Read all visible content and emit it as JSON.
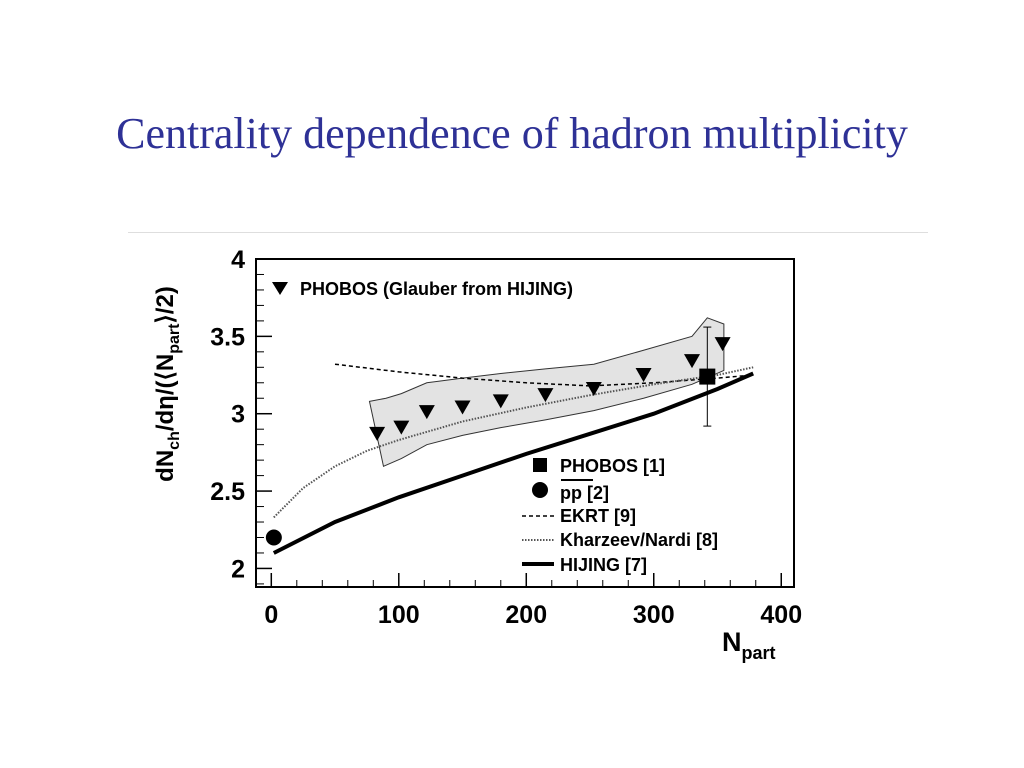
{
  "slide": {
    "title": "Centrality dependence of hadron multiplicity"
  },
  "chart_data": {
    "type": "scatter",
    "xlim": [
      -12,
      410
    ],
    "ylim": [
      1.88,
      4.0
    ],
    "x_ticks": [
      "0",
      "100",
      "200",
      "300",
      "400"
    ],
    "x_tick_values": [
      0,
      100,
      200,
      300,
      400
    ],
    "y_ticks": [
      "2",
      "2.5",
      "3",
      "3.5",
      "4"
    ],
    "y_tick_values": [
      2,
      2.5,
      3,
      3.5,
      4
    ],
    "xlabel": {
      "main": "N",
      "sub": "part"
    },
    "ylabel": {
      "p1": "dN",
      "sub1": "ch",
      "p2": "/dη/(⟨N",
      "sub2": "part",
      "p3": "⟩/2)"
    },
    "legend_top": "PHOBOS (Glauber from HIJING)",
    "legend": [
      {
        "label": "PHOBOS [1]",
        "style": "square"
      },
      {
        "label": "pp [2]",
        "style": "circle",
        "overline": "pp"
      },
      {
        "label": "EKRT [9]",
        "style": "dashed"
      },
      {
        "label": "Kharzeev/Nardi [8]",
        "style": "dotted"
      },
      {
        "label": "HIJING [7]",
        "style": "solid"
      }
    ],
    "series": [
      {
        "name": "PHOBOS (Glauber from HIJING)",
        "marker": "triangle-down",
        "x": [
          83,
          102,
          122,
          150,
          180,
          215,
          253,
          292,
          330,
          354
        ],
        "y": [
          2.87,
          2.91,
          3.01,
          3.04,
          3.08,
          3.12,
          3.16,
          3.25,
          3.34,
          3.45
        ]
      },
      {
        "name": "PHOBOS [1]",
        "marker": "square",
        "x": [
          342
        ],
        "y": [
          3.24
        ],
        "yerr": [
          0.32
        ]
      },
      {
        "name": "pp [2]",
        "marker": "circle",
        "x": [
          2
        ],
        "y": [
          2.2
        ]
      },
      {
        "name": "EKRT [9]",
        "line": "dashed",
        "x": [
          50,
          100,
          150,
          200,
          250,
          300,
          350,
          378
        ],
        "y": [
          3.32,
          3.27,
          3.23,
          3.2,
          3.18,
          3.2,
          3.23,
          3.25
        ]
      },
      {
        "name": "Kharzeev/Nardi [8]",
        "line": "dotted",
        "x": [
          2,
          25,
          50,
          75,
          100,
          150,
          200,
          250,
          300,
          350,
          378
        ],
        "y": [
          2.33,
          2.52,
          2.66,
          2.76,
          2.83,
          2.95,
          3.04,
          3.12,
          3.19,
          3.25,
          3.3
        ]
      },
      {
        "name": "HIJING [7]",
        "line": "solid",
        "x": [
          2,
          50,
          100,
          150,
          200,
          250,
          300,
          350,
          378
        ],
        "y": [
          2.1,
          2.3,
          2.46,
          2.6,
          2.74,
          2.87,
          3.0,
          3.16,
          3.26
        ]
      }
    ],
    "band": {
      "upper": {
        "x": [
          77,
          90,
          102,
          122,
          150,
          180,
          215,
          253,
          292,
          330,
          342,
          355
        ],
        "y": [
          3.08,
          3.1,
          3.13,
          3.2,
          3.23,
          3.26,
          3.29,
          3.32,
          3.41,
          3.5,
          3.62,
          3.58
        ]
      },
      "lower": {
        "x": [
          88,
          102,
          122,
          150,
          180,
          215,
          253,
          292,
          330,
          355
        ],
        "y": [
          2.66,
          2.71,
          2.8,
          2.86,
          2.91,
          2.96,
          3.02,
          3.1,
          3.19,
          3.28
        ]
      }
    }
  }
}
